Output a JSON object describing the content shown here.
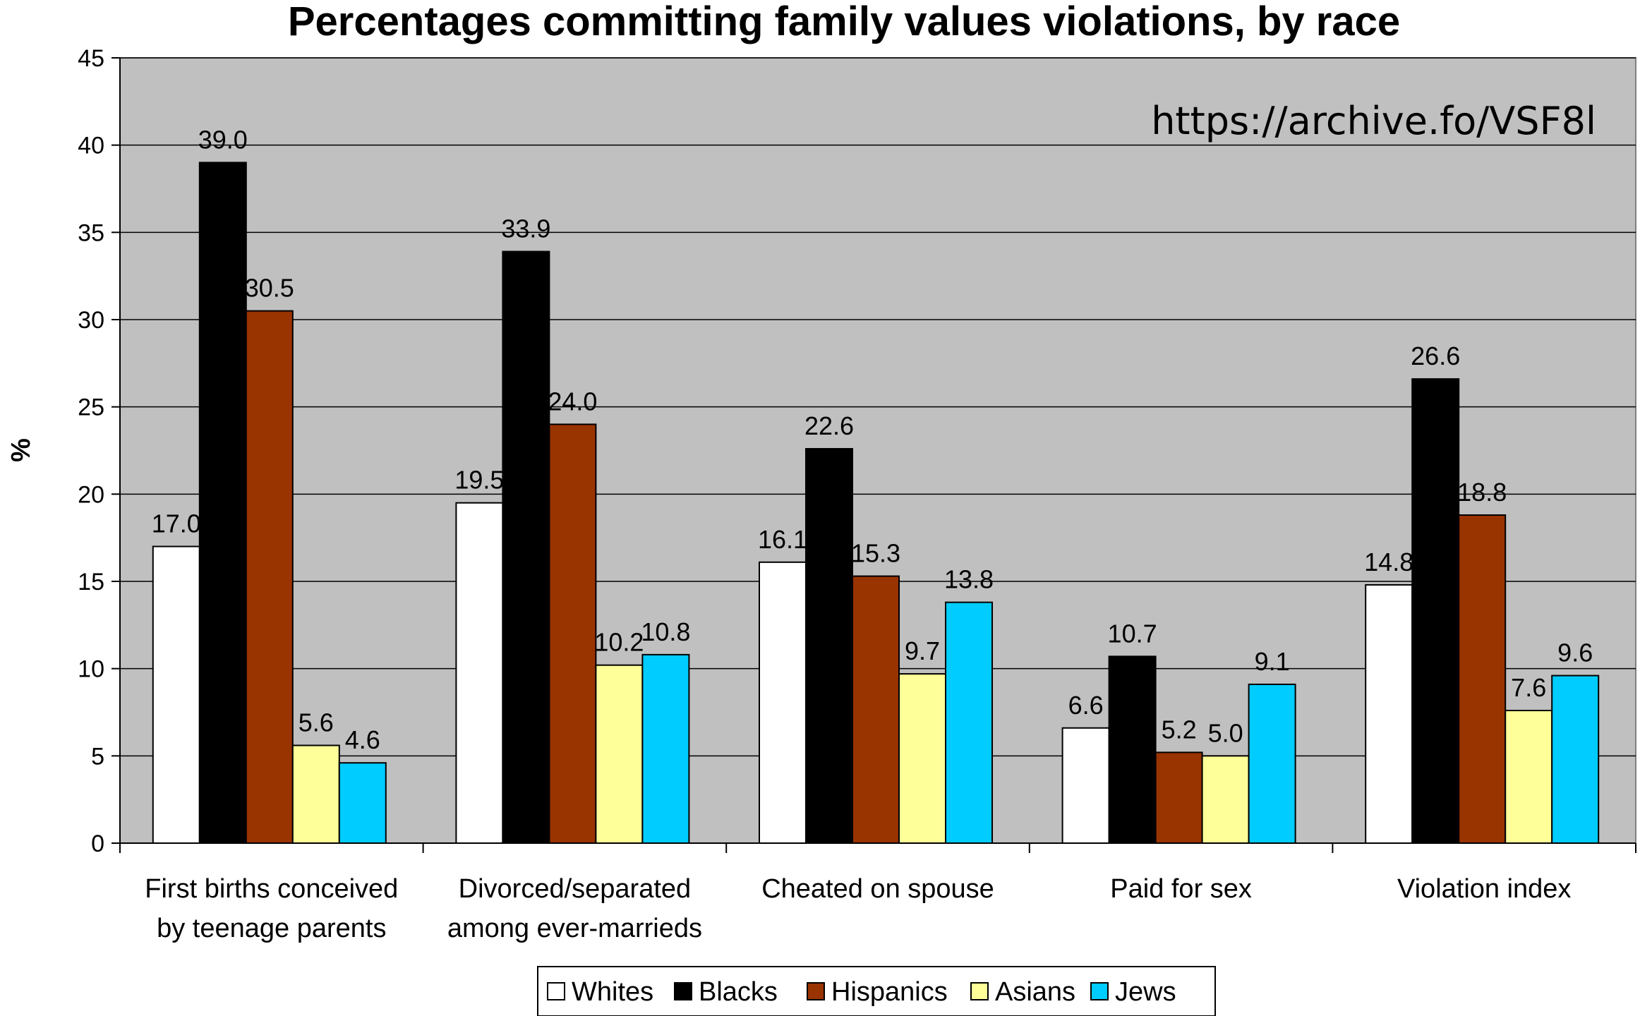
{
  "chart_data": {
    "type": "bar",
    "title": "Percentages committing family values violations, by race",
    "ylabel": "%",
    "xlabel": "",
    "ylim": [
      0,
      45
    ],
    "yticks": [
      0,
      5,
      10,
      15,
      20,
      25,
      30,
      35,
      40,
      45
    ],
    "grid": true,
    "legend_position": "bottom",
    "annotation": "https://archive.fo/VSF8l",
    "categories": [
      [
        "First births conceived",
        "by teenage parents"
      ],
      [
        "Divorced/separated",
        "among ever-marrieds"
      ],
      [
        "Cheated on spouse"
      ],
      [
        "Paid for sex"
      ],
      [
        "Violation index"
      ]
    ],
    "series": [
      {
        "name": "Whites",
        "color": "#ffffff",
        "values": [
          17.0,
          19.5,
          16.1,
          6.6,
          14.8
        ]
      },
      {
        "name": "Blacks",
        "color": "#000000",
        "values": [
          39.0,
          33.9,
          22.6,
          10.7,
          26.6
        ]
      },
      {
        "name": "Hispanics",
        "color": "#993300",
        "values": [
          30.5,
          24.0,
          15.3,
          5.2,
          18.8
        ]
      },
      {
        "name": "Asians",
        "color": "#ffff99",
        "values": [
          5.6,
          10.2,
          9.7,
          5.0,
          7.6
        ]
      },
      {
        "name": "Jews",
        "color": "#00ccff",
        "values": [
          4.6,
          10.8,
          13.8,
          9.1,
          9.6
        ]
      }
    ],
    "plot_background": "#c0c0c0"
  }
}
